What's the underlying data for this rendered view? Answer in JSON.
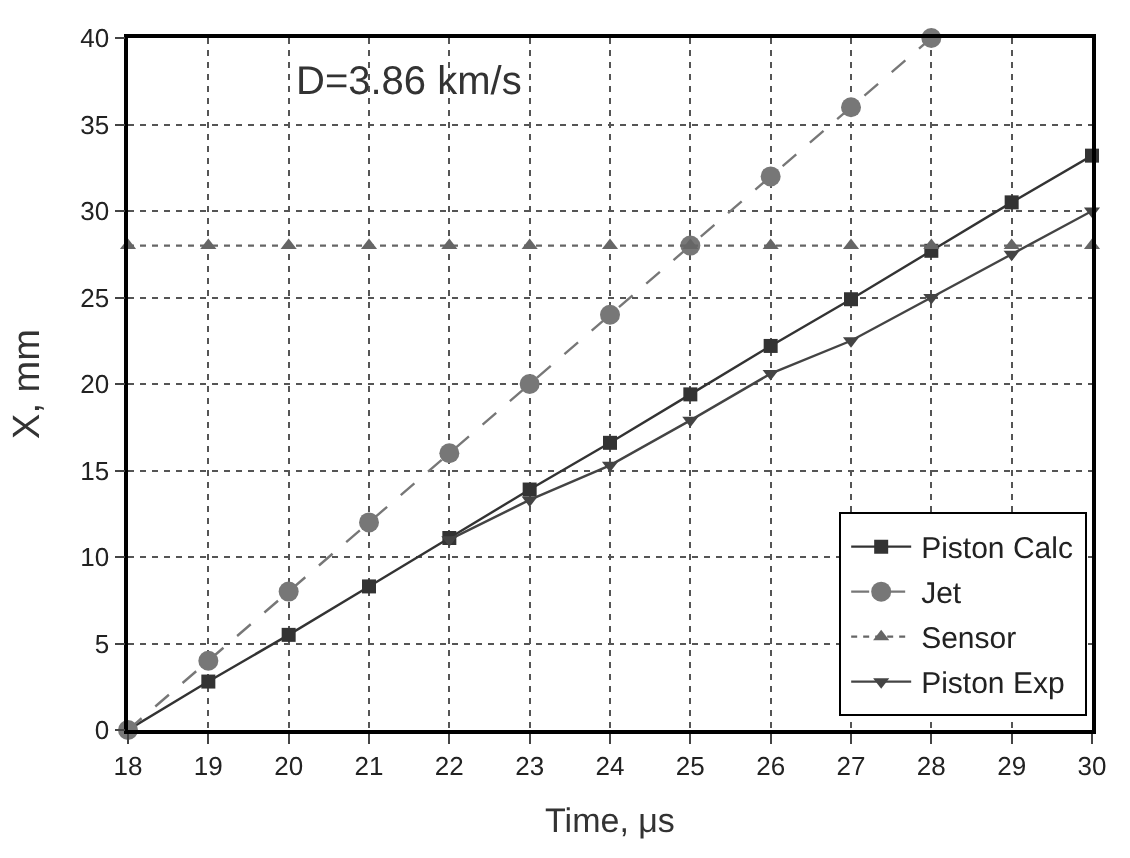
{
  "chart_data": {
    "type": "line",
    "xlabel": "Time, μs",
    "ylabel": "X, mm",
    "annotations": [
      "D=3.86 km/s"
    ],
    "xlim": [
      18,
      30
    ],
    "xticks": [
      18,
      19,
      20,
      21,
      22,
      23,
      24,
      25,
      26,
      27,
      28,
      29,
      30
    ],
    "ylim": [
      0,
      40
    ],
    "yticks": [
      0,
      5,
      10,
      15,
      20,
      25,
      30,
      35,
      40
    ],
    "grid": true,
    "legend": "bottom right",
    "series": [
      {
        "name": "Piston Calc",
        "color": "#333333",
        "marker": "square",
        "line_style": "solid",
        "x": [
          18,
          19,
          20,
          21,
          22,
          23,
          24,
          25,
          26,
          27,
          28,
          29,
          30
        ],
        "values": [
          0,
          2.8,
          5.5,
          8.3,
          11.1,
          13.9,
          16.6,
          19.4,
          22.2,
          24.9,
          27.7,
          30.5,
          33.2
        ]
      },
      {
        "name": "Jet",
        "color": "#777777",
        "marker": "circle",
        "line_style": "dashed",
        "x": [
          18,
          19,
          20,
          21,
          22,
          23,
          24,
          25,
          26,
          27,
          28
        ],
        "values": [
          0,
          4,
          8,
          12,
          16,
          20,
          24,
          28,
          32,
          36,
          40
        ]
      },
      {
        "name": "Sensor",
        "color": "#666666",
        "marker": "triangle",
        "line_style": "dotted",
        "x": [
          18,
          19,
          20,
          21,
          22,
          23,
          24,
          25,
          26,
          27,
          28,
          29,
          30
        ],
        "values": [
          28,
          28,
          28,
          28,
          28,
          28,
          28,
          28,
          28,
          28,
          28,
          28,
          28
        ]
      },
      {
        "name": "Piston Exp",
        "color": "#444444",
        "marker": "triangle-down",
        "line_style": "solid",
        "x": [
          22,
          23,
          24,
          25,
          26,
          27,
          28,
          29,
          30
        ],
        "values": [
          11,
          13.3,
          15.3,
          17.9,
          20.6,
          22.5,
          25,
          27.5,
          30
        ]
      }
    ]
  }
}
